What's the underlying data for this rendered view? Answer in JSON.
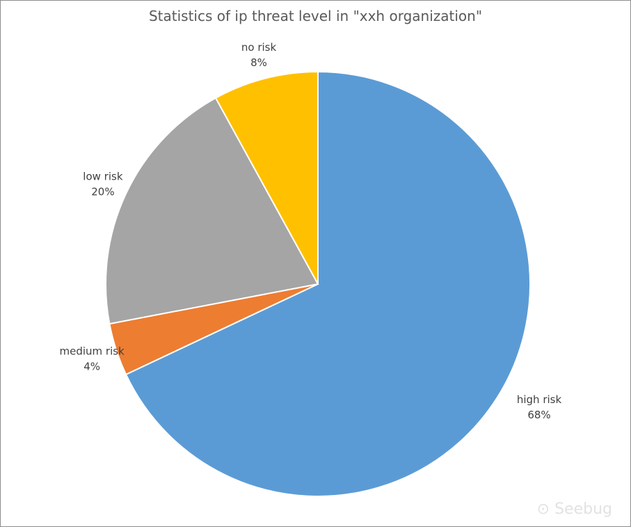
{
  "chart_data": {
    "type": "pie",
    "title": "Statistics of ip threat level in \"xxh organization\"",
    "slices": [
      {
        "label": "high risk",
        "value": 68,
        "display": "68%",
        "color": "#5b9bd5"
      },
      {
        "label": "medium risk",
        "value": 4,
        "display": "4%",
        "color": "#ed7d31"
      },
      {
        "label": "low risk",
        "value": 20,
        "display": "20%",
        "color": "#a5a5a5"
      },
      {
        "label": "no risk",
        "value": 8,
        "display": "8%",
        "color": "#ffc000"
      }
    ],
    "start_angle": "top, clockwise",
    "legend": "none (data labels outside)"
  },
  "watermark": "Seebug"
}
